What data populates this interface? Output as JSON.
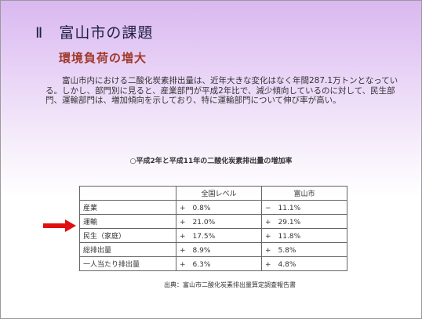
{
  "slide": {
    "title": "Ⅱ　富山市の課題",
    "subtitle": "環境負荷の増大",
    "paragraph": "富山市内における二酸化炭素排出量は、近年大きな変化はなく年間287.1万トンとなっている。しかし、部門別に見ると、産業部門が平成2年比で、減少傾向しているのに対して、民生部門、運輸部門は、増加傾向を示しており、特に運輸部門について伸び率が高い。",
    "caption": "○平成2年と平成11年の二酸化炭素排出量の増加率",
    "table": {
      "header": [
        "全国レベル",
        "富山市"
      ],
      "rows": [
        [
          "産業",
          "+　0.8%",
          "−　11.1%"
        ],
        [
          "運輸",
          "+　21.0%",
          "+　29.1%"
        ],
        [
          "民生（家庭）",
          "+　17.5%",
          "+　11.8%"
        ],
        [
          "総排出量",
          "+　8.9%",
          "+　5.8%"
        ],
        [
          "一人当たり排出量",
          "+　6.3%",
          "+　4.8%"
        ]
      ]
    },
    "source": "出典：富山市二酸化炭素排出量算定調査報告書"
  }
}
